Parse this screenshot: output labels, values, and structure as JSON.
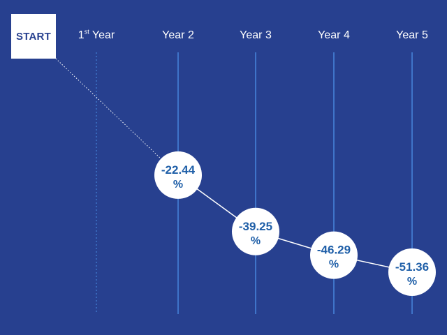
{
  "start_label": "START",
  "first_year": {
    "number": "1",
    "suffix": "st",
    "word": "Year"
  },
  "colors": {
    "background": "#27408f",
    "gridline": "#3f74c9",
    "value_text": "#1f5fa8",
    "line": "#ffffff"
  },
  "chart_data": {
    "type": "line",
    "categories": [
      "1st Year",
      "Year 2",
      "Year 3",
      "Year 4",
      "Year 5"
    ],
    "series": [
      {
        "values": [
          null,
          -22.44,
          -39.25,
          -46.29,
          -51.36
        ],
        "labels": [
          "",
          "-22.44 %",
          "-39.25 %",
          "-46.29 %",
          "-51.36 %"
        ]
      }
    ],
    "start_point": {
      "label": "START",
      "value": 0
    },
    "ylim": [
      -60,
      0
    ],
    "title": "",
    "xlabel": "",
    "ylabel": "",
    "grid": true
  }
}
